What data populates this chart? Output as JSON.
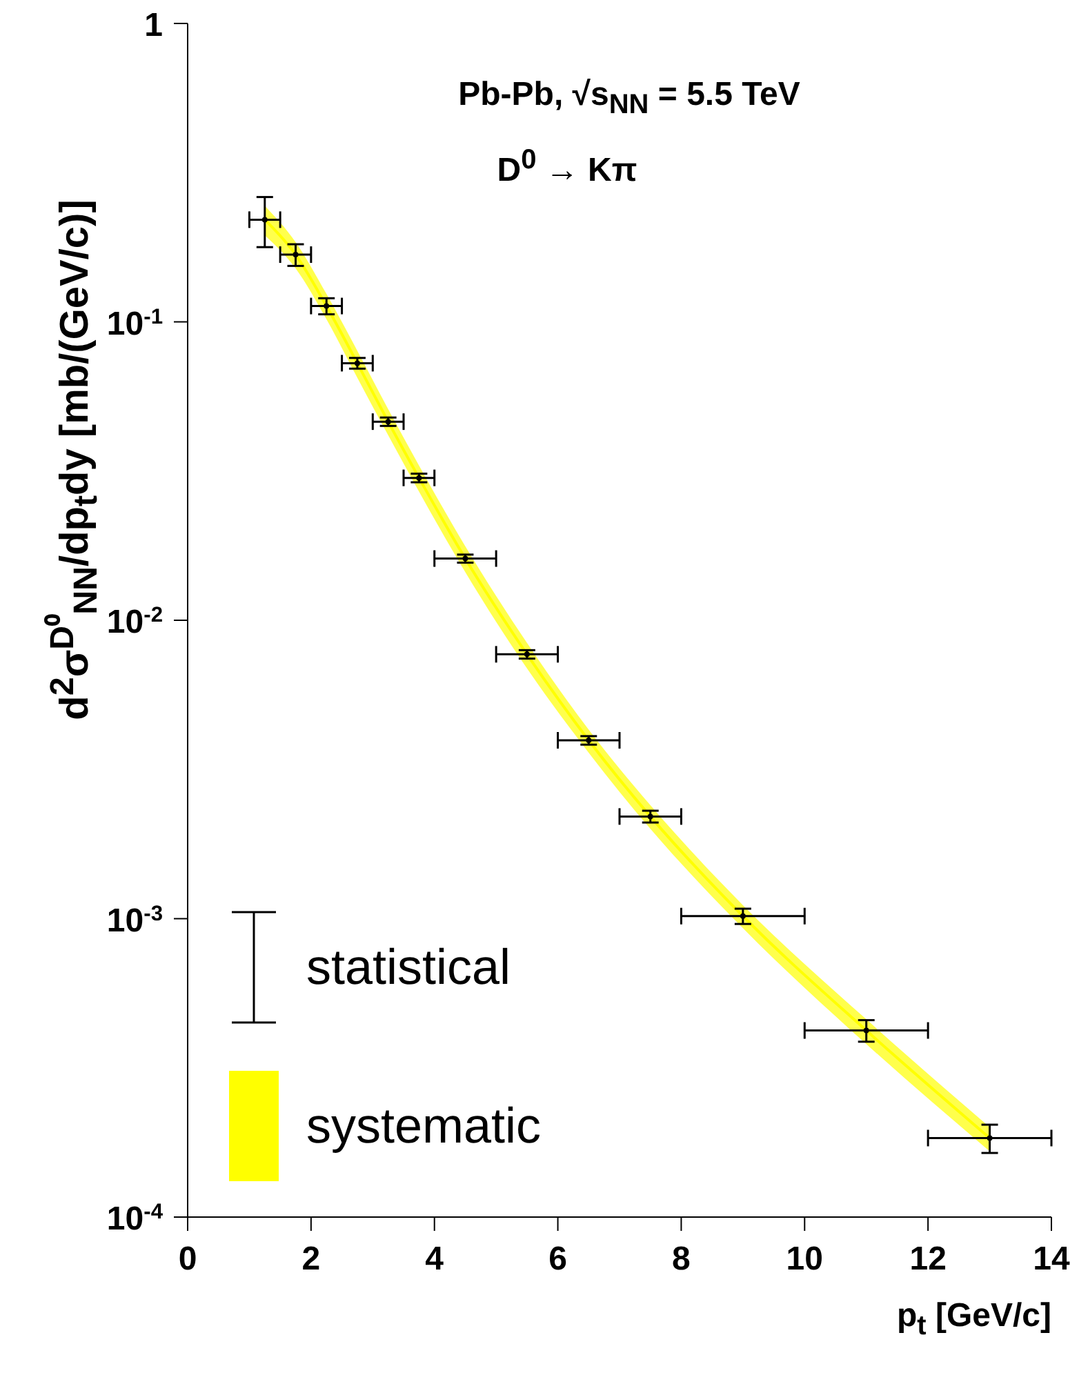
{
  "chart_data": {
    "type": "scatter",
    "ylabel": "d$^{2}$σ$^{D⁰}$$_{NN}$/dp$_{t}$dy [mb/(GeV/c)]",
    "xlabel": "p$_{t}$ [GeV/c]",
    "annotations": [
      "Pb-Pb, √s$_{NN}$ = 5.5 TeV",
      "D$^{0}$ → Kπ"
    ],
    "x": [
      1.25,
      1.75,
      2.25,
      2.75,
      3.25,
      3.75,
      4.5,
      5.5,
      6.5,
      7.5,
      9,
      11,
      13
    ],
    "series": [
      {
        "name": "statistical",
        "color": "#000000",
        "marker": "circle",
        "values": [
          0.22,
          0.168,
          0.113,
          0.0727,
          0.0463,
          0.03,
          0.0161,
          0.00769,
          0.00396,
          0.0022,
          0.00102,
          0.000422,
          0.000184
        ],
        "errors": [
          0.042,
          0.014,
          0.007,
          0.003,
          0.0015,
          0.001,
          0.0005,
          0.00025,
          0.00013,
          0.0001,
          6e-05,
          3.5e-05,
          2e-05
        ],
        "xerrors": [
          0.25,
          0.25,
          0.25,
          0.25,
          0.25,
          0.25,
          0.5,
          0.5,
          0.5,
          0.5,
          1,
          1,
          1
        ]
      },
      {
        "name": "systematic",
        "type": "line",
        "color": "#ffff00",
        "values": [
          0.22,
          0.168,
          0.113,
          0.0727,
          0.0463,
          0.03,
          0.0161,
          0.00769,
          0.00396,
          0.0022,
          0.00102,
          0.000422,
          0.000184
        ],
        "lower": [
          0.195,
          0.151,
          0.102,
          0.065,
          0.0417,
          0.027,
          0.0145,
          0.0069,
          0.0036,
          0.002,
          0.00093,
          0.00038,
          0.000166
        ],
        "upper": [
          0.245,
          0.185,
          0.124,
          0.08,
          0.051,
          0.033,
          0.0177,
          0.0084,
          0.0043,
          0.0024,
          0.00111,
          0.00046,
          0.0002
        ]
      }
    ],
    "log": "y",
    "xlim": [
      0,
      14
    ],
    "xticks": [
      0,
      2,
      4,
      6,
      8,
      10,
      12,
      14
    ],
    "ylim": [
      0.0001,
      1
    ],
    "yticks": [
      {
        "value": 0.0001,
        "label": "10$^{-4}$"
      },
      {
        "value": 0.001,
        "label": "10$^{-3}$"
      },
      {
        "value": 0.01,
        "label": "10$^{-2}$"
      },
      {
        "value": 0.1,
        "label": "10$^{-1}$"
      },
      1
    ],
    "legend": "bottom left"
  }
}
